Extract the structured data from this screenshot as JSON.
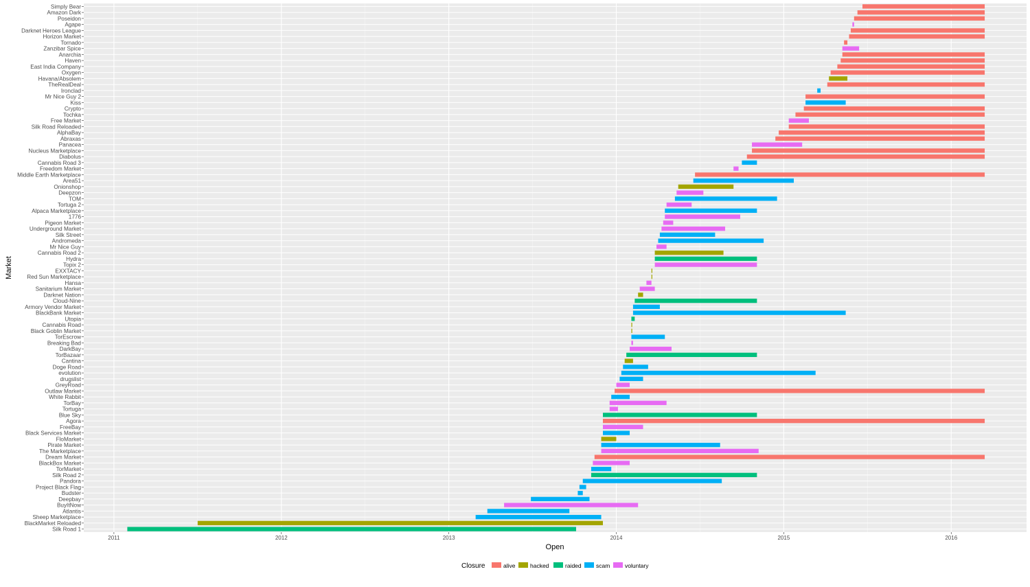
{
  "chart_data": {
    "type": "bar",
    "orientation": "horizontal-range",
    "xlabel": "Open",
    "ylabel": "Market",
    "xlim": [
      2010.82,
      2016.45
    ],
    "x_ticks": [
      {
        "value": 2011,
        "label": "2011"
      },
      {
        "value": 2012,
        "label": "2012"
      },
      {
        "value": 2013,
        "label": "2013"
      },
      {
        "value": 2014,
        "label": "2014"
      },
      {
        "value": 2015,
        "label": "2015"
      },
      {
        "value": 2016,
        "label": "2016"
      }
    ],
    "grid": true,
    "legend": {
      "title": "Closure",
      "position": "bottom",
      "entries": [
        {
          "key": "alive",
          "label": "alive",
          "color": "#F8766D"
        },
        {
          "key": "hacked",
          "label": "hacked",
          "color": "#A3A500"
        },
        {
          "key": "raided",
          "label": "raided",
          "color": "#00BF7D"
        },
        {
          "key": "scam",
          "label": "scam",
          "color": "#00B0F6"
        },
        {
          "key": "voluntary",
          "label": "voluntary",
          "color": "#E76BF3"
        }
      ]
    },
    "markets": [
      {
        "name": "Simply Bear",
        "start": 2015.47,
        "end": 2016.2,
        "closure": "alive"
      },
      {
        "name": "Amazon Dark",
        "start": 2015.44,
        "end": 2016.2,
        "closure": "alive"
      },
      {
        "name": "Poseidon",
        "start": 2015.42,
        "end": 2016.2,
        "closure": "alive"
      },
      {
        "name": "Agape",
        "start": 2015.41,
        "end": 2015.42,
        "closure": "voluntary"
      },
      {
        "name": "Darknet Heroes League",
        "start": 2015.4,
        "end": 2016.2,
        "closure": "alive"
      },
      {
        "name": "Horizon Market",
        "start": 2015.39,
        "end": 2016.2,
        "closure": "alive"
      },
      {
        "name": "Tornado",
        "start": 2015.36,
        "end": 2015.38,
        "closure": "alive"
      },
      {
        "name": "Zanzibar Spice",
        "start": 2015.35,
        "end": 2015.45,
        "closure": "voluntary"
      },
      {
        "name": "Anarchia",
        "start": 2015.35,
        "end": 2016.2,
        "closure": "alive"
      },
      {
        "name": "Haven",
        "start": 2015.34,
        "end": 2016.2,
        "closure": "alive"
      },
      {
        "name": "East India Company",
        "start": 2015.32,
        "end": 2016.2,
        "closure": "alive"
      },
      {
        "name": "Oxygen",
        "start": 2015.28,
        "end": 2016.2,
        "closure": "alive"
      },
      {
        "name": "Havana/Absolem",
        "start": 2015.27,
        "end": 2015.38,
        "closure": "hacked"
      },
      {
        "name": "TheRealDeal",
        "start": 2015.26,
        "end": 2016.2,
        "closure": "alive"
      },
      {
        "name": "Ironclad",
        "start": 2015.2,
        "end": 2015.22,
        "closure": "scam"
      },
      {
        "name": "Mr Nice Guy 2",
        "start": 2015.13,
        "end": 2016.2,
        "closure": "alive"
      },
      {
        "name": "Kiss",
        "start": 2015.13,
        "end": 2015.37,
        "closure": "scam"
      },
      {
        "name": "Crypto",
        "start": 2015.12,
        "end": 2016.2,
        "closure": "alive"
      },
      {
        "name": "Tochka",
        "start": 2015.07,
        "end": 2016.2,
        "closure": "alive"
      },
      {
        "name": "Free Market",
        "start": 2015.03,
        "end": 2015.15,
        "closure": "voluntary"
      },
      {
        "name": "Silk Road Reloaded",
        "start": 2015.03,
        "end": 2016.2,
        "closure": "alive"
      },
      {
        "name": "AlphaBay",
        "start": 2014.97,
        "end": 2016.2,
        "closure": "alive"
      },
      {
        "name": "Abraxas",
        "start": 2014.95,
        "end": 2016.2,
        "closure": "alive"
      },
      {
        "name": "Panacea",
        "start": 2014.81,
        "end": 2015.11,
        "closure": "voluntary"
      },
      {
        "name": "Nucleus Marketplace",
        "start": 2014.81,
        "end": 2016.2,
        "closure": "alive"
      },
      {
        "name": "Diabolus",
        "start": 2014.78,
        "end": 2016.2,
        "closure": "alive"
      },
      {
        "name": "Cannabis Road 3",
        "start": 2014.75,
        "end": 2014.84,
        "closure": "scam"
      },
      {
        "name": "Freedom Market",
        "start": 2014.7,
        "end": 2014.73,
        "closure": "voluntary"
      },
      {
        "name": "Middle Earth Marketplace",
        "start": 2014.47,
        "end": 2016.2,
        "closure": "alive"
      },
      {
        "name": "Area51",
        "start": 2014.46,
        "end": 2015.06,
        "closure": "scam"
      },
      {
        "name": "Onionshop",
        "start": 2014.37,
        "end": 2014.7,
        "closure": "hacked"
      },
      {
        "name": "Deepzon",
        "start": 2014.36,
        "end": 2014.52,
        "closure": "voluntary"
      },
      {
        "name": "TOM",
        "start": 2014.35,
        "end": 2014.96,
        "closure": "scam"
      },
      {
        "name": "Tortuga 2",
        "start": 2014.3,
        "end": 2014.45,
        "closure": "voluntary"
      },
      {
        "name": "Alpaca Marketplace",
        "start": 2014.29,
        "end": 2014.84,
        "closure": "scam"
      },
      {
        "name": "1776",
        "start": 2014.29,
        "end": 2014.74,
        "closure": "voluntary"
      },
      {
        "name": "Pigeon Market",
        "start": 2014.28,
        "end": 2014.34,
        "closure": "voluntary"
      },
      {
        "name": "Underground Market",
        "start": 2014.27,
        "end": 2014.65,
        "closure": "voluntary"
      },
      {
        "name": "Silk Street",
        "start": 2014.26,
        "end": 2014.59,
        "closure": "scam"
      },
      {
        "name": "Andromeda",
        "start": 2014.25,
        "end": 2014.88,
        "closure": "scam"
      },
      {
        "name": "Mr Nice Guy",
        "start": 2014.24,
        "end": 2014.3,
        "closure": "voluntary"
      },
      {
        "name": "Cannabis Road 2",
        "start": 2014.23,
        "end": 2014.64,
        "closure": "hacked"
      },
      {
        "name": "Hydra",
        "start": 2014.23,
        "end": 2014.84,
        "closure": "raided"
      },
      {
        "name": "Topix 2",
        "start": 2014.23,
        "end": 2014.84,
        "closure": "voluntary"
      },
      {
        "name": "EXXTACY",
        "start": 2014.21,
        "end": 2014.215,
        "closure": "hacked"
      },
      {
        "name": "Red Sun Marketplace",
        "start": 2014.21,
        "end": 2014.215,
        "closure": "hacked"
      },
      {
        "name": "Hansa",
        "start": 2014.18,
        "end": 2014.21,
        "closure": "voluntary"
      },
      {
        "name": "Sanitarium Market",
        "start": 2014.14,
        "end": 2014.23,
        "closure": "voluntary"
      },
      {
        "name": "Darknet Nation",
        "start": 2014.13,
        "end": 2014.16,
        "closure": "hacked"
      },
      {
        "name": "Cloud-Nine",
        "start": 2014.11,
        "end": 2014.84,
        "closure": "raided"
      },
      {
        "name": "Armory Vendor Market",
        "start": 2014.1,
        "end": 2014.26,
        "closure": "scam"
      },
      {
        "name": "BlackBank Market",
        "start": 2014.1,
        "end": 2015.37,
        "closure": "scam"
      },
      {
        "name": "Utopia",
        "start": 2014.09,
        "end": 2014.11,
        "closure": "raided"
      },
      {
        "name": "Cannabis Road",
        "start": 2014.09,
        "end": 2014.095,
        "closure": "hacked"
      },
      {
        "name": "Black Goblin Market",
        "start": 2014.09,
        "end": 2014.095,
        "closure": "hacked"
      },
      {
        "name": "TorEscrow",
        "start": 2014.09,
        "end": 2014.29,
        "closure": "scam"
      },
      {
        "name": "Breaking Bad",
        "start": 2014.09,
        "end": 2014.1,
        "closure": "voluntary"
      },
      {
        "name": "DarkBay",
        "start": 2014.08,
        "end": 2014.33,
        "closure": "voluntary"
      },
      {
        "name": "TorBazaar",
        "start": 2014.06,
        "end": 2014.84,
        "closure": "raided"
      },
      {
        "name": "Cantina",
        "start": 2014.05,
        "end": 2014.1,
        "closure": "hacked"
      },
      {
        "name": "Doge Road",
        "start": 2014.04,
        "end": 2014.19,
        "closure": "scam"
      },
      {
        "name": "evolution",
        "start": 2014.03,
        "end": 2015.19,
        "closure": "scam"
      },
      {
        "name": "drugslist",
        "start": 2014.02,
        "end": 2014.16,
        "closure": "scam"
      },
      {
        "name": "GreyRoad",
        "start": 2014.0,
        "end": 2014.08,
        "closure": "voluntary"
      },
      {
        "name": "Outlaw Market",
        "start": 2013.99,
        "end": 2016.2,
        "closure": "alive"
      },
      {
        "name": "White Rabbit",
        "start": 2013.97,
        "end": 2014.08,
        "closure": "scam"
      },
      {
        "name": "TorBay",
        "start": 2013.96,
        "end": 2014.3,
        "closure": "voluntary"
      },
      {
        "name": "Tortuga",
        "start": 2013.96,
        "end": 2014.01,
        "closure": "voluntary"
      },
      {
        "name": "Blue Sky",
        "start": 2013.92,
        "end": 2014.84,
        "closure": "raided"
      },
      {
        "name": "Agora",
        "start": 2013.92,
        "end": 2016.2,
        "closure": "alive"
      },
      {
        "name": "FreeBay",
        "start": 2013.92,
        "end": 2014.16,
        "closure": "voluntary"
      },
      {
        "name": "Black Services Market",
        "start": 2013.92,
        "end": 2014.08,
        "closure": "scam"
      },
      {
        "name": "FloMarket",
        "start": 2013.91,
        "end": 2014.0,
        "closure": "hacked"
      },
      {
        "name": "Pirate Market",
        "start": 2013.91,
        "end": 2014.62,
        "closure": "scam"
      },
      {
        "name": "The Marketplace",
        "start": 2013.91,
        "end": 2014.85,
        "closure": "voluntary"
      },
      {
        "name": "Dream Market",
        "start": 2013.87,
        "end": 2016.2,
        "closure": "alive"
      },
      {
        "name": "BlackBox Market",
        "start": 2013.86,
        "end": 2014.08,
        "closure": "voluntary"
      },
      {
        "name": "TorMarket",
        "start": 2013.85,
        "end": 2013.97,
        "closure": "scam"
      },
      {
        "name": "Silk Road 2",
        "start": 2013.85,
        "end": 2014.84,
        "closure": "raided"
      },
      {
        "name": "Pandora",
        "start": 2013.8,
        "end": 2014.63,
        "closure": "scam"
      },
      {
        "name": "Project Black Flag",
        "start": 2013.78,
        "end": 2013.82,
        "closure": "scam"
      },
      {
        "name": "Budster",
        "start": 2013.77,
        "end": 2013.8,
        "closure": "scam"
      },
      {
        "name": "Deepbay",
        "start": 2013.49,
        "end": 2013.84,
        "closure": "scam"
      },
      {
        "name": "BuyItNow",
        "start": 2013.33,
        "end": 2014.13,
        "closure": "voluntary"
      },
      {
        "name": "Atlantis",
        "start": 2013.23,
        "end": 2013.72,
        "closure": "scam"
      },
      {
        "name": "Sheep Marketplace",
        "start": 2013.16,
        "end": 2013.91,
        "closure": "scam"
      },
      {
        "name": "BlackMarket Reloaded",
        "start": 2011.5,
        "end": 2013.92,
        "closure": "hacked"
      },
      {
        "name": "Silk Road 1",
        "start": 2011.08,
        "end": 2013.76,
        "closure": "raided"
      }
    ]
  }
}
